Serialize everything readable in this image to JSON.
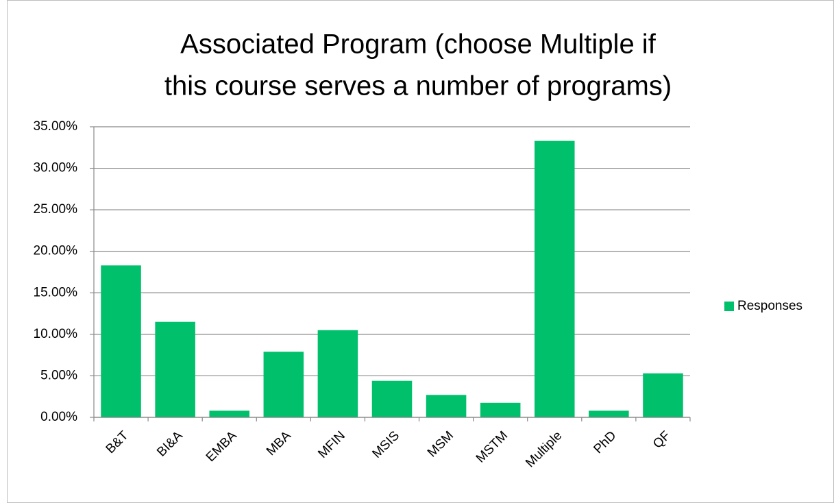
{
  "chart_data": {
    "type": "bar",
    "title": [
      "Associated Program (choose Multiple if",
      "this course serves a number of programs)"
    ],
    "categories": [
      "B&T",
      "BI&A",
      "EMBA",
      "MBA",
      "MFIN",
      "MSIS",
      "MSM",
      "MSTM",
      "Multiple",
      "PhD",
      "QF"
    ],
    "series": [
      {
        "name": "Responses",
        "color": "#00c06b",
        "values": [
          18.3,
          11.5,
          0.8,
          7.9,
          10.5,
          4.4,
          2.7,
          1.75,
          33.3,
          0.8,
          5.3
        ]
      }
    ],
    "ylim": [
      0,
      35
    ],
    "yticks": [
      {
        "value": 0,
        "label": "0.00%"
      },
      {
        "value": 5,
        "label": "5.00%"
      },
      {
        "value": 10,
        "label": "10.00%"
      },
      {
        "value": 15,
        "label": "15.00%"
      },
      {
        "value": 20,
        "label": "20.00%"
      },
      {
        "value": 25,
        "label": "25.00%"
      },
      {
        "value": 30,
        "label": "30.00%"
      },
      {
        "value": 35,
        "label": "35.00%"
      }
    ],
    "grid": true,
    "legend": "right"
  }
}
